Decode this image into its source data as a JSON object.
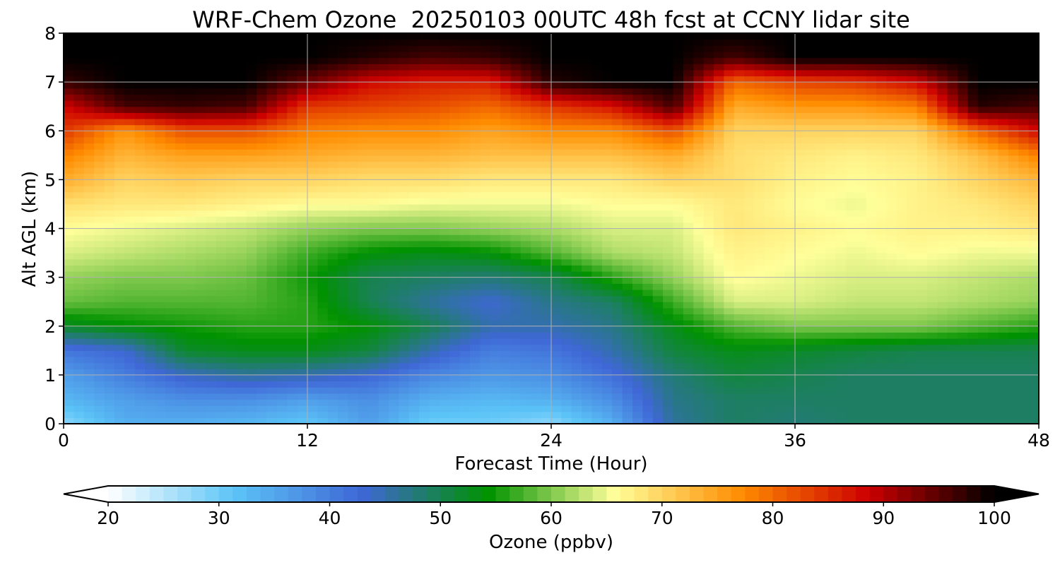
{
  "chart_data": {
    "type": "heatmap",
    "title": "WRF-Chem Ozone  20250103 00UTC 48h fcst at CCNY lidar site",
    "xlabel": "Forecast Time (Hour)",
    "ylabel": "Alt AGL (km)",
    "xlim": [
      0,
      48
    ],
    "ylim": [
      0,
      8
    ],
    "xticks": [
      "0",
      "12",
      "24",
      "36",
      "48"
    ],
    "yticks": [
      "0",
      "1",
      "2",
      "3",
      "4",
      "5",
      "6",
      "7",
      "8"
    ],
    "grid": true,
    "colorbar": {
      "label": "Ozone  (ppbv)",
      "range": [
        20,
        100
      ],
      "ticks": [
        "20",
        "30",
        "40",
        "50",
        "60",
        "70",
        "80",
        "90",
        "100"
      ],
      "extend": "both",
      "colors": [
        "#ffffff",
        "#5bc4f7",
        "#3f67d6",
        "#009200",
        "#ffff9a",
        "#ff8c00",
        "#cc0000",
        "#000000"
      ]
    },
    "x": [
      0,
      3,
      6,
      9,
      12,
      15,
      18,
      21,
      24,
      27,
      30,
      33,
      36,
      39,
      42,
      45,
      48
    ],
    "y": [
      0,
      0.5,
      1,
      1.5,
      2,
      2.5,
      3,
      3.5,
      4,
      4.5,
      5,
      5.5,
      6,
      6.5,
      7,
      7.5,
      8
    ],
    "z": [
      [
        28,
        34,
        34,
        33,
        31,
        36,
        30,
        30,
        28,
        34,
        46,
        49,
        48,
        49,
        49,
        49,
        49
      ],
      [
        33,
        36,
        38,
        38,
        36,
        38,
        34,
        33,
        34,
        38,
        47,
        49,
        49,
        49,
        49,
        49,
        49
      ],
      [
        36,
        40,
        44,
        46,
        45,
        43,
        39,
        37,
        38,
        42,
        48,
        51,
        50,
        49,
        49,
        49,
        49
      ],
      [
        41,
        43,
        52,
        53,
        53,
        51,
        45,
        40,
        41,
        45,
        51,
        53,
        52,
        51,
        50,
        50,
        50
      ],
      [
        52,
        54,
        55,
        56,
        56,
        54,
        50,
        45,
        45,
        47,
        53,
        58,
        60,
        60,
        60,
        58,
        56
      ],
      [
        59,
        58,
        58,
        58,
        56,
        50,
        46,
        43,
        47,
        49,
        57,
        64,
        64,
        63,
        63,
        62,
        61
      ],
      [
        61,
        60,
        60,
        59,
        55,
        50,
        49,
        48,
        50,
        56,
        61,
        66,
        65,
        64,
        64,
        63,
        62
      ],
      [
        64,
        63,
        62,
        61,
        57,
        54,
        53,
        54,
        58,
        62,
        63,
        67,
        66,
        65,
        66,
        65,
        65
      ],
      [
        66,
        65,
        64,
        63,
        61,
        60,
        60,
        61,
        62,
        64,
        64,
        68,
        67,
        66,
        67,
        67,
        68
      ],
      [
        69,
        68,
        68,
        67,
        66,
        66,
        65,
        65,
        65,
        66,
        66,
        68,
        66,
        65,
        67,
        68,
        70
      ],
      [
        74,
        70,
        71,
        70,
        70,
        69,
        69,
        68,
        68,
        68,
        70,
        69,
        67,
        66,
        67,
        70,
        73
      ],
      [
        78,
        73,
        75,
        75,
        74,
        73,
        73,
        72,
        72,
        72,
        74,
        69,
        68,
        67,
        68,
        72,
        78
      ],
      [
        84,
        76,
        82,
        82,
        78,
        77,
        77,
        75,
        77,
        77,
        82,
        70,
        70,
        70,
        70,
        80,
        88
      ],
      [
        88,
        96,
        97,
        96,
        84,
        83,
        82,
        80,
        84,
        87,
        96,
        74,
        76,
        76,
        78,
        98,
        96
      ],
      [
        97,
        100,
        100,
        100,
        94,
        88,
        86,
        86,
        98,
        100,
        100,
        80,
        83,
        84,
        88,
        100,
        100
      ],
      [
        100,
        100,
        100,
        100,
        100,
        98,
        96,
        97,
        100,
        100,
        100,
        96,
        100,
        100,
        100,
        100,
        100
      ],
      [
        100,
        100,
        100,
        100,
        100,
        100,
        100,
        100,
        100,
        100,
        100,
        100,
        100,
        100,
        100,
        100,
        100
      ]
    ]
  }
}
